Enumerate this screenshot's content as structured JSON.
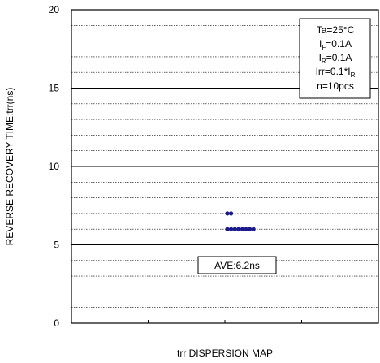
{
  "chart_data": {
    "type": "scatter",
    "title": "",
    "xlabel": "trr DISPERSION MAP",
    "ylabel": "REVERSE RECOVERY TIME:trr(ns)",
    "ylim": [
      0,
      20
    ],
    "y_ticks": [
      "0",
      "5",
      "10",
      "15",
      "20"
    ],
    "grid": true,
    "point_color": "#1a1a8c",
    "points": [
      {
        "y": 7
      },
      {
        "y": 7
      },
      {
        "y": 6
      },
      {
        "y": 6
      },
      {
        "y": 6
      },
      {
        "y": 6
      },
      {
        "y": 6
      },
      {
        "y": 6
      },
      {
        "y": 6
      },
      {
        "y": 6
      }
    ],
    "conditions": {
      "ta": "Ta=25°C",
      "if_main": "I",
      "if_sub": "F",
      "if_val": "=0.1A",
      "ir_main": "I",
      "ir_sub": "R",
      "ir_val": "=0.1A",
      "irr_main": "Irr=0.1*I",
      "irr_sub": "R",
      "n": "n=10pcs"
    },
    "average_label": "AVE:6.2ns"
  }
}
